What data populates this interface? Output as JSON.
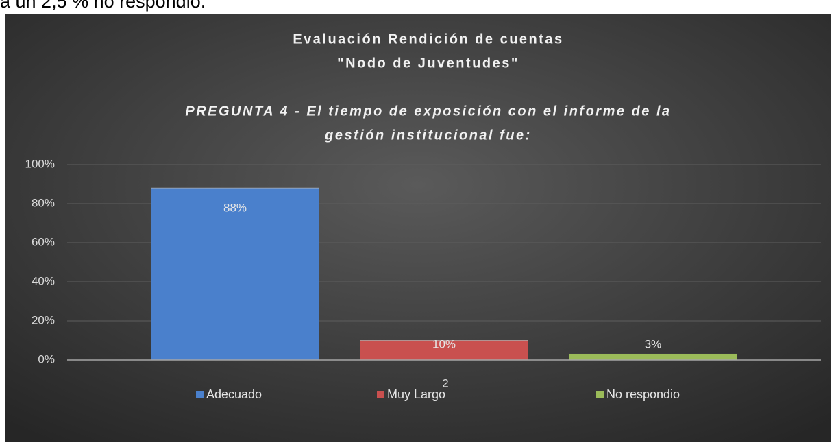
{
  "document": {
    "text": "a un 2,5 % no respondio."
  },
  "chart_data": {
    "type": "bar",
    "title": [
      "Evaluación Rendición de cuentas",
      "\"Nodo de Juventudes\""
    ],
    "subtitle": [
      "PREGUNTA 4 - El tiempo de exposición con el informe de la",
      "gestión institucional fue:"
    ],
    "categories": [
      "2"
    ],
    "series": [
      {
        "name": "Adecuado",
        "color": "#4a80cc",
        "values": [
          88
        ],
        "value_labels": [
          "88%"
        ]
      },
      {
        "name": "Muy Largo",
        "color": "#c9504f",
        "values": [
          10
        ],
        "value_labels": [
          "10%"
        ]
      },
      {
        "name": "No respondio",
        "color": "#9bbb59",
        "values": [
          3
        ],
        "value_labels": [
          "3%"
        ]
      }
    ],
    "ylim": [
      0,
      100
    ],
    "yticks": [
      {
        "value": 0,
        "label": "0%"
      },
      {
        "value": 20,
        "label": "20%"
      },
      {
        "value": 40,
        "label": "40%"
      },
      {
        "value": 60,
        "label": "60%"
      },
      {
        "value": 80,
        "label": "80%"
      },
      {
        "value": 100,
        "label": "100%"
      }
    ],
    "grid": true,
    "legend": "bottom"
  }
}
